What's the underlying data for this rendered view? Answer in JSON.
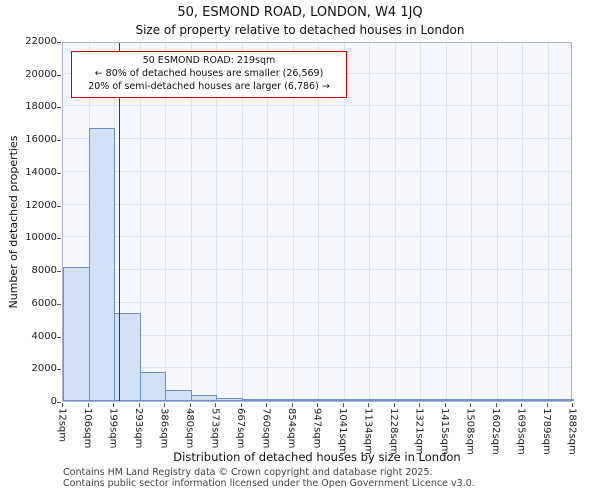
{
  "chart_data": {
    "type": "bar",
    "title": "50, ESMOND ROAD, LONDON, W4 1JQ",
    "subtitle": "Size of property relative to detached houses in London",
    "xlabel": "Distribution of detached houses by size in London",
    "ylabel": "Number of detached properties",
    "ylim": [
      0,
      22000
    ],
    "y_ticks": [
      0,
      2000,
      4000,
      6000,
      8000,
      10000,
      12000,
      14000,
      16000,
      18000,
      20000,
      22000
    ],
    "bin_edges_sqm": [
      12,
      106,
      199,
      293,
      386,
      480,
      573,
      667,
      760,
      854,
      947,
      1041,
      1134,
      1228,
      1321,
      1415,
      1508,
      1602,
      1695,
      1789,
      1882
    ],
    "x_tick_labels": [
      "12sqm",
      "106sqm",
      "199sqm",
      "293sqm",
      "386sqm",
      "480sqm",
      "573sqm",
      "667sqm",
      "760sqm",
      "854sqm",
      "947sqm",
      "1041sqm",
      "1134sqm",
      "1228sqm",
      "1321sqm",
      "1415sqm",
      "1508sqm",
      "1602sqm",
      "1695sqm",
      "1789sqm",
      "1882sqm"
    ],
    "values": [
      8200,
      16700,
      5400,
      1800,
      700,
      350,
      160,
      90,
      60,
      40,
      25,
      15,
      10,
      8,
      6,
      5,
      4,
      3,
      2,
      1
    ],
    "grid": true,
    "marker": {
      "value_sqm": 219,
      "color": "#cc0000"
    },
    "annotation": {
      "line1": "50 ESMOND ROAD: 219sqm",
      "line2": "← 80% of detached houses are smaller (26,569)",
      "line3": "20% of semi-detached houses are larger (6,786) →"
    },
    "colors": {
      "bar_fill": "#d4e1f5",
      "bar_edge": "#6c92c6",
      "grid": "#dce3f0",
      "plot_bg": "#f5f7fc",
      "marker_red": "#cc0000"
    }
  },
  "footer": {
    "line1": "Contains HM Land Registry data © Crown copyright and database right 2025.",
    "line2": "Contains public sector information licensed under the Open Government Licence v3.0."
  }
}
